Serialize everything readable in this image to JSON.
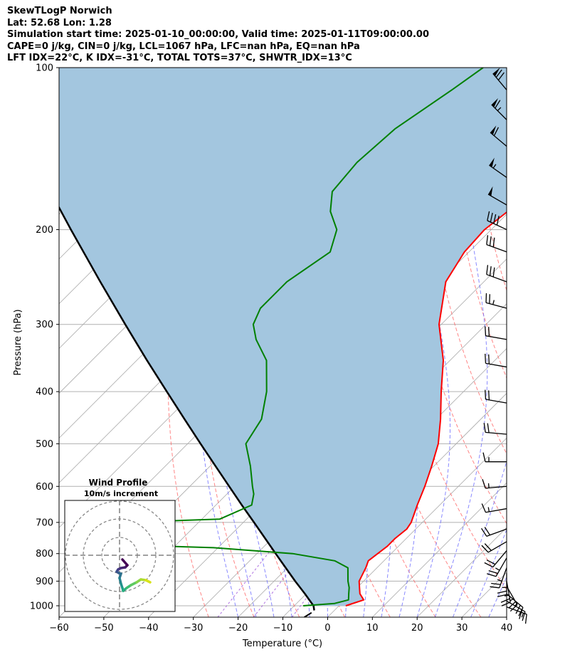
{
  "header": {
    "line1": "SkewTLogP Norwich",
    "line2": "Lat: 52.68   Lon: 1.28",
    "line3": "Simulation start time: 2025-01-10_00:00:00, Valid time: 2025-01-11T09:00:00.00",
    "line4": "CAPE=0 j/kg, CIN=0 j/kg, LCL=1067 hPa, LFC=nan hPa, EQ=nan hPa",
    "line5": "LFT IDX=22°C, K IDX=-31°C, TOTAL TOTS=37°C, SHWTR_IDX=13°C"
  },
  "chart_data": {
    "type": "skewt",
    "xlabel": "Temperature (°C)",
    "ylabel": "Pressure (hPa)",
    "xlim": [
      -60,
      40
    ],
    "ylim": [
      1050,
      100
    ],
    "x_ticks": [
      -60,
      -50,
      -40,
      -30,
      -20,
      -10,
      0,
      10,
      20,
      30,
      40
    ],
    "x_tick_labels": [
      "−60",
      "−50",
      "−40",
      "−30",
      "−20",
      "−10",
      "0",
      "10",
      "20",
      "30",
      "40"
    ],
    "y_ticks": [
      100,
      200,
      300,
      400,
      500,
      600,
      700,
      800,
      900,
      1000
    ],
    "y_tick_labels": [
      "100",
      "200",
      "300",
      "400",
      "500",
      "600",
      "700",
      "800",
      "900",
      "1000"
    ],
    "grid": true,
    "colors": {
      "temperature": "#ff0000",
      "dewpoint": "#008000",
      "parcel": "#000000",
      "shade": "#a3c6df",
      "dry_adiabat": "#ff6666",
      "moist_adiabat": "#6b6bff",
      "mixing_ratio": "#9a4bd8",
      "isotherm": "#aaaaaa"
    },
    "series": [
      {
        "key": "temperature",
        "points": [
          [
            1000,
            1.5
          ],
          [
            975,
            4.2
          ],
          [
            950,
            2.0
          ],
          [
            925,
            0.5
          ],
          [
            900,
            -1.0
          ],
          [
            850,
            -2.5
          ],
          [
            825,
            -3.5
          ],
          [
            800,
            -3.0
          ],
          [
            775,
            -2.5
          ],
          [
            750,
            -2.5
          ],
          [
            720,
            -2.0
          ],
          [
            700,
            -2.5
          ],
          [
            650,
            -5.0
          ],
          [
            600,
            -7.5
          ],
          [
            550,
            -10.5
          ],
          [
            500,
            -14.0
          ],
          [
            450,
            -19.0
          ],
          [
            400,
            -25.0
          ],
          [
            350,
            -31.5
          ],
          [
            300,
            -40.5
          ],
          [
            250,
            -48.5
          ],
          [
            220,
            -51.0
          ],
          [
            200,
            -51.5
          ],
          [
            180,
            -50.0
          ],
          [
            160,
            -48.5
          ],
          [
            150,
            -46.5
          ],
          [
            130,
            -46.0
          ],
          [
            120,
            -47.0
          ],
          [
            100,
            -50.0
          ]
        ]
      },
      {
        "key": "dewpoint",
        "points": [
          [
            1000,
            -8.0
          ],
          [
            990,
            -1.5
          ],
          [
            975,
            0.8
          ],
          [
            950,
            -0.5
          ],
          [
            925,
            -1.8
          ],
          [
            900,
            -3.5
          ],
          [
            850,
            -6.5
          ],
          [
            825,
            -11.0
          ],
          [
            800,
            -22.0
          ],
          [
            780,
            -41.0
          ],
          [
            770,
            -64.0
          ],
          [
            715,
            -67.0
          ],
          [
            700,
            -66.0
          ],
          [
            690,
            -46.0
          ],
          [
            650,
            -42.0
          ],
          [
            620,
            -44.0
          ],
          [
            600,
            -46.0
          ],
          [
            550,
            -51.0
          ],
          [
            500,
            -57.0
          ],
          [
            450,
            -59.0
          ],
          [
            400,
            -64.0
          ],
          [
            350,
            -71.0
          ],
          [
            320,
            -78.0
          ],
          [
            300,
            -82.0
          ],
          [
            280,
            -84.0
          ],
          [
            250,
            -84.0
          ],
          [
            220,
            -81.0
          ],
          [
            200,
            -84.5
          ],
          [
            185,
            -90.0
          ],
          [
            170,
            -94.0
          ],
          [
            150,
            -95.0
          ],
          [
            130,
            -94.0
          ],
          [
            110,
            -90.0
          ],
          [
            100,
            -88.0
          ]
        ]
      },
      {
        "key": "parcel",
        "points": [
          [
            1020,
            -4.5
          ],
          [
            1000,
            -5.7
          ],
          [
            950,
            -10.3
          ],
          [
            900,
            -15.3
          ],
          [
            850,
            -20.4
          ],
          [
            800,
            -25.8
          ],
          [
            750,
            -31.5
          ],
          [
            700,
            -37.6
          ],
          [
            650,
            -44.2
          ],
          [
            600,
            -51.2
          ],
          [
            550,
            -58.8
          ],
          [
            500,
            -67.1
          ],
          [
            450,
            -76.2
          ],
          [
            400,
            -86.3
          ],
          [
            350,
            -97.7
          ],
          [
            300,
            -110.6
          ],
          [
            250,
            -125.7
          ],
          [
            200,
            -143.9
          ],
          [
            150,
            -167.0
          ],
          [
            100,
            -199.2
          ]
        ]
      }
    ],
    "wind_barbs": {
      "pressures": [
        1005,
        980,
        950,
        920,
        900,
        870,
        850,
        815,
        790,
        760,
        720,
        660,
        600,
        540,
        480,
        420,
        360,
        320,
        280,
        250,
        220,
        200,
        180,
        160,
        140,
        125,
        110
      ],
      "speed_kt": [
        15,
        20,
        25,
        25,
        25,
        25,
        25,
        25,
        20,
        20,
        20,
        15,
        15,
        15,
        20,
        20,
        20,
        20,
        25,
        30,
        30,
        40,
        50,
        55,
        60,
        65,
        70
      ],
      "direction_deg": [
        110,
        120,
        130,
        150,
        170,
        180,
        200,
        210,
        220,
        240,
        250,
        260,
        265,
        270,
        275,
        280,
        280,
        280,
        285,
        290,
        290,
        295,
        300,
        305,
        310,
        315,
        320
      ]
    },
    "inset": {
      "title": "Wind Profile",
      "subtitle": "10m/s increment"
    }
  }
}
